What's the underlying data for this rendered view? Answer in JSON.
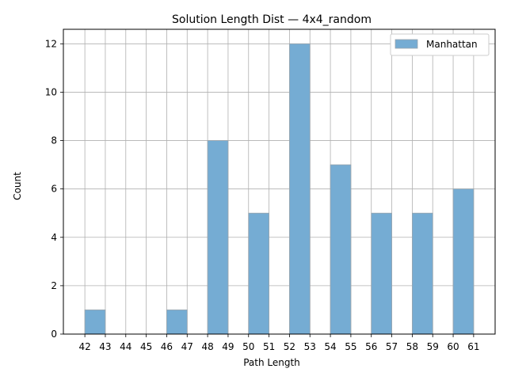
{
  "chart_data": {
    "type": "bar",
    "title": "Solution Length Dist — 4x4_random",
    "xlabel": "Path Length",
    "ylabel": "Count",
    "xlim": [
      40.95,
      62.05
    ],
    "ylim": [
      0,
      12.6
    ],
    "x_ticks": [
      42,
      43,
      44,
      45,
      46,
      47,
      48,
      49,
      50,
      51,
      52,
      53,
      54,
      55,
      56,
      57,
      58,
      59,
      60,
      61
    ],
    "y_ticks": [
      0,
      2,
      4,
      6,
      8,
      10,
      12
    ],
    "grid": true,
    "legend_position": "top-right",
    "series": [
      {
        "name": "Manhattan",
        "color": "#75acd3",
        "bins": [
          {
            "start": 42,
            "end": 43,
            "count": 1
          },
          {
            "start": 44,
            "end": 45,
            "count": 0
          },
          {
            "start": 46,
            "end": 47,
            "count": 1
          },
          {
            "start": 48,
            "end": 49,
            "count": 8
          },
          {
            "start": 50,
            "end": 51,
            "count": 5
          },
          {
            "start": 52,
            "end": 53,
            "count": 12
          },
          {
            "start": 54,
            "end": 55,
            "count": 7
          },
          {
            "start": 56,
            "end": 57,
            "count": 5
          },
          {
            "start": 58,
            "end": 59,
            "count": 5
          },
          {
            "start": 60,
            "end": 61,
            "count": 6
          }
        ]
      }
    ]
  }
}
